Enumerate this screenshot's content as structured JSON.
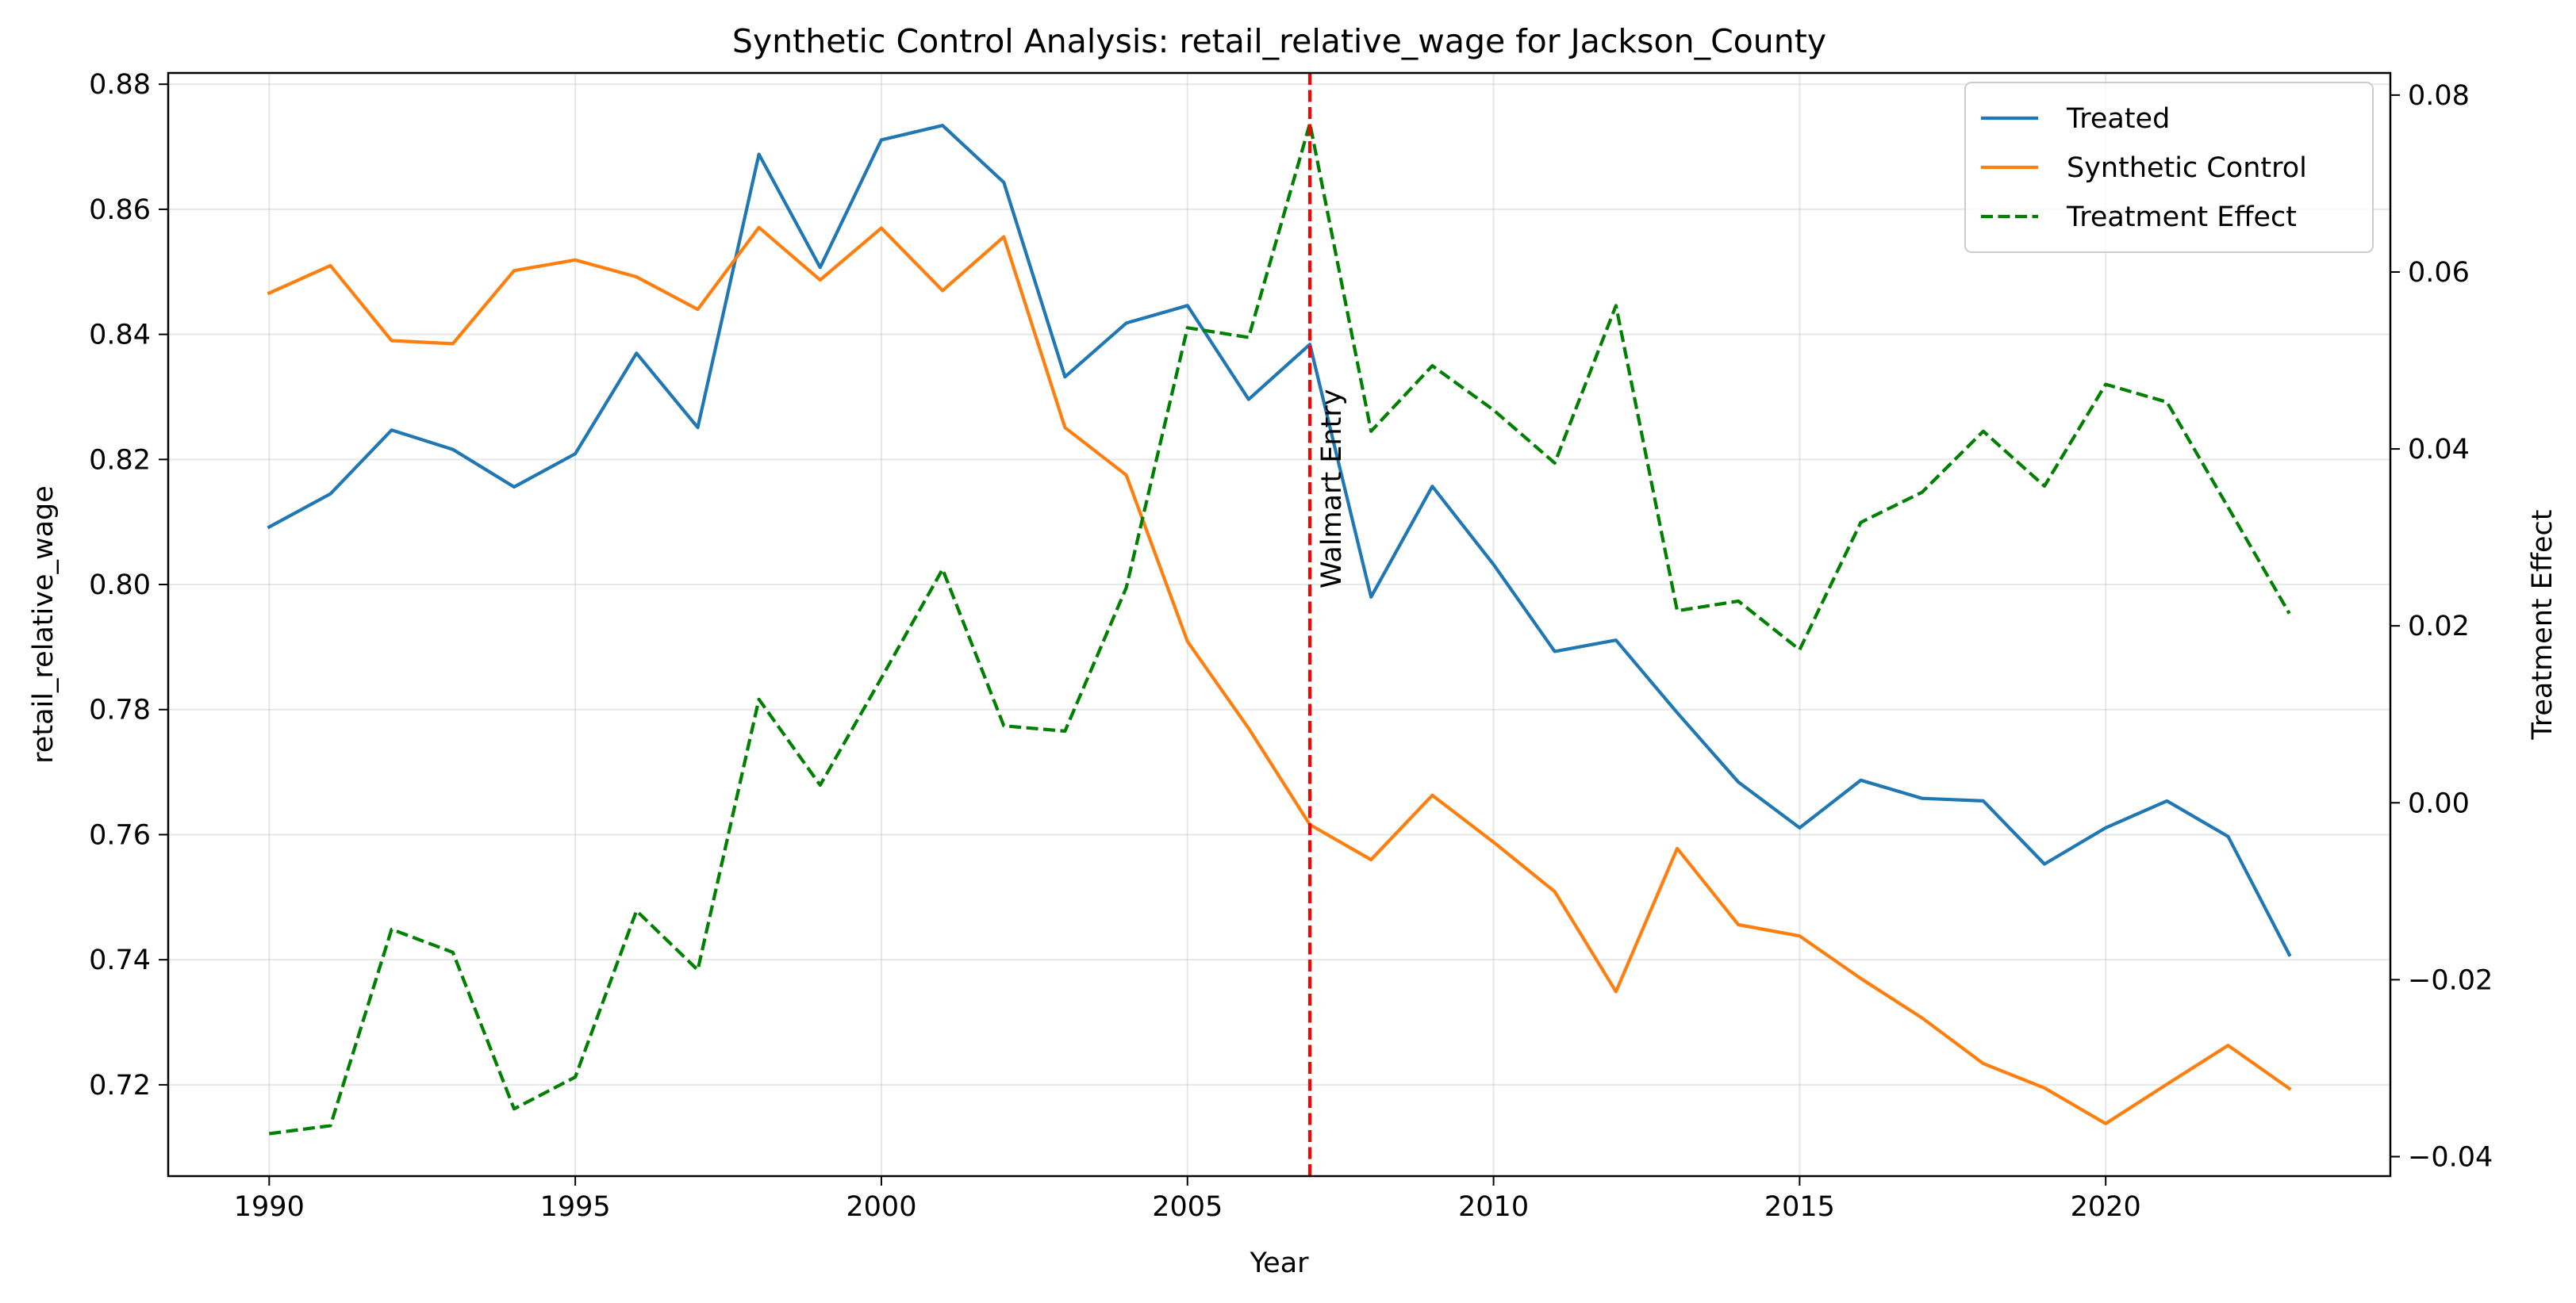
{
  "chart_data": {
    "type": "line",
    "title": "Synthetic Control Analysis: retail_relative_wage for Jackson_County",
    "xlabel": "Year",
    "ylabel": "retail_relative_wage",
    "y2label": "Treatment Effect",
    "xlim": [
      1988.35,
      2024.65
    ],
    "ylim": [
      0.7054,
      0.8818
    ],
    "y2lim": [
      -0.0422,
      0.0825
    ],
    "xticks": [
      1990,
      1995,
      2000,
      2005,
      2010,
      2015,
      2020
    ],
    "yticks": [
      0.72,
      0.74,
      0.76,
      0.78,
      0.8,
      0.82,
      0.84,
      0.86,
      0.88
    ],
    "y2ticks": [
      -0.04,
      -0.02,
      0.0,
      0.02,
      0.04,
      0.06,
      0.08
    ],
    "ytick_labels": [
      "0.72",
      "0.74",
      "0.76",
      "0.78",
      "0.80",
      "0.82",
      "0.84",
      "0.86",
      "0.88"
    ],
    "y2tick_labels": [
      "−0.04",
      "−0.02",
      "0.00",
      "0.02",
      "0.04",
      "0.06",
      "0.08"
    ],
    "grid": true,
    "legend_position": "top-right",
    "x": [
      1990,
      1991,
      1992,
      1993,
      1994,
      1995,
      1996,
      1997,
      1998,
      1999,
      2000,
      2001,
      2002,
      2003,
      2004,
      2005,
      2006,
      2007,
      2008,
      2009,
      2010,
      2011,
      2012,
      2013,
      2014,
      2015,
      2016,
      2017,
      2018,
      2019,
      2020,
      2021,
      2022,
      2023
    ],
    "series": [
      {
        "name": "Treated",
        "axis": "left",
        "color": "#1f77b4",
        "style": "solid",
        "values": [
          0.8092,
          0.8145,
          0.8247,
          0.8216,
          0.8156,
          0.8209,
          0.837,
          0.8251,
          0.8688,
          0.8507,
          0.8711,
          0.8734,
          0.8643,
          0.8332,
          0.8418,
          0.8446,
          0.8296,
          0.8384,
          0.798,
          0.8157,
          0.8032,
          0.7893,
          0.7911,
          0.7795,
          0.7684,
          0.7611,
          0.7687,
          0.7658,
          0.7654,
          0.7553,
          0.7611,
          0.7654,
          0.7597,
          0.7408
        ]
      },
      {
        "name": "Synthetic Control",
        "axis": "left",
        "color": "#ff7f0e",
        "style": "solid",
        "values": [
          0.8466,
          0.851,
          0.839,
          0.8385,
          0.8502,
          0.8519,
          0.8492,
          0.844,
          0.8571,
          0.8487,
          0.857,
          0.847,
          0.8556,
          0.8251,
          0.8175,
          0.7909,
          0.777,
          0.7616,
          0.756,
          0.7663,
          0.7588,
          0.7509,
          0.7349,
          0.7578,
          0.7456,
          0.7438,
          0.737,
          0.7307,
          0.7234,
          0.7195,
          0.7138,
          0.7201,
          0.7263,
          0.7194
        ]
      },
      {
        "name": "Treatment Effect",
        "axis": "right",
        "color": "#008000",
        "style": "dashed",
        "values": [
          -0.0374,
          -0.0365,
          -0.0143,
          -0.0169,
          -0.0346,
          -0.031,
          -0.0122,
          -0.0189,
          0.0117,
          0.002,
          0.0141,
          0.0264,
          0.0087,
          0.0081,
          0.0243,
          0.0537,
          0.0526,
          0.0768,
          0.042,
          0.0494,
          0.0444,
          0.0384,
          0.0562,
          0.0217,
          0.0228,
          0.0173,
          0.0317,
          0.0351,
          0.042,
          0.0358,
          0.0473,
          0.0453,
          0.0334,
          0.0214
        ]
      }
    ],
    "vline": {
      "x": 2007,
      "color": "#ff0000",
      "label": "Walmart Entry"
    }
  }
}
